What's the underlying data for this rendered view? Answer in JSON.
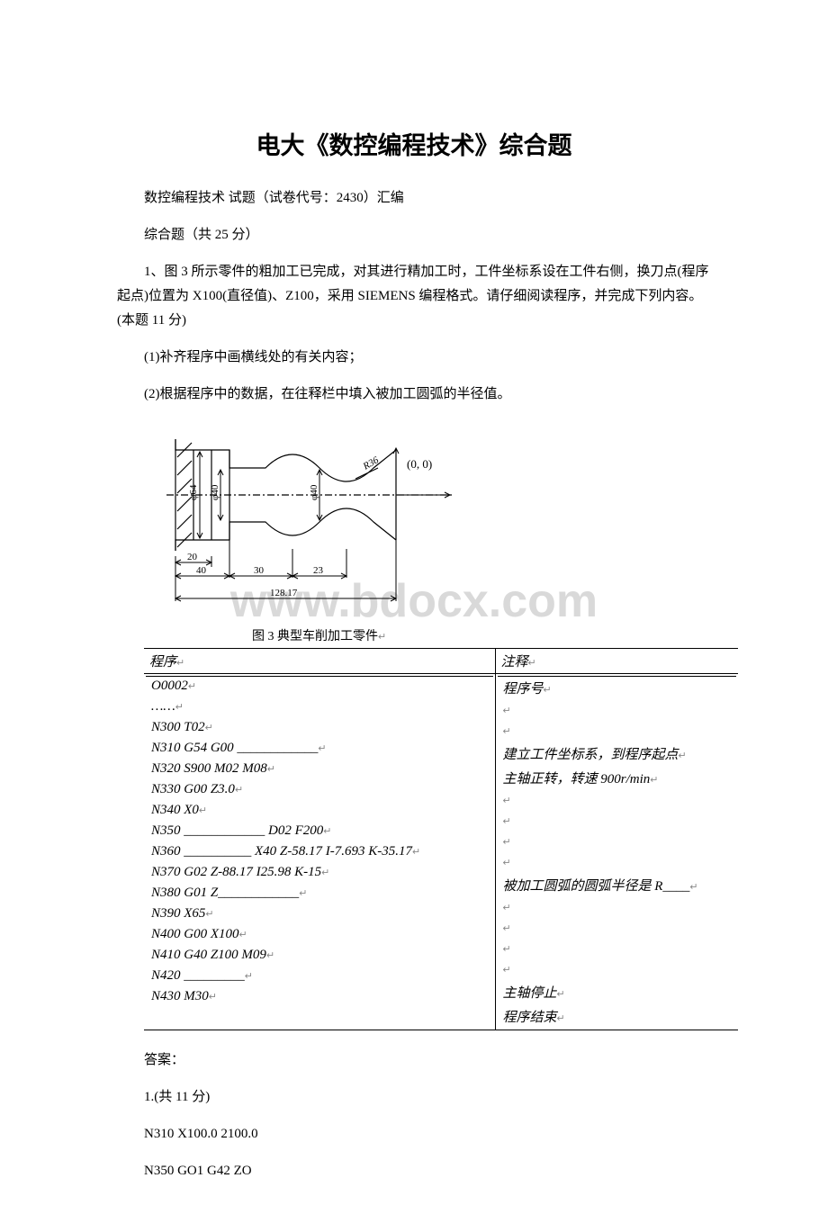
{
  "watermark": "www.bdocx.com",
  "title": "电大《数控编程技术》综合题",
  "intro_lines": [
    "数控编程技术 试题（试卷代号：2430）汇编",
    "综合题（共 25 分）"
  ],
  "question": {
    "stem": "1、图 3 所示零件的粗加工已完成，对其进行精加工时，工件坐标系设在工件右侧，换刀点(程序起点)位置为 X100(直径值)、Z100，采用 SIEMENS 编程格式。请仔细阅读程序，并完成下列内容。(本题 11 分)",
    "sub1": "(1)补齐程序中画横线处的有关内容；",
    "sub2": "(2)根据程序中的数据，在往释栏中填入被加工圆弧的半径值。"
  },
  "figure": {
    "caption": "图 3 典型车削加工零件",
    "origin_label": "(0, 0)",
    "dia_64": "φ64",
    "dia_40a": "φ40",
    "dia_40b": "φ40",
    "r36": "R36",
    "dim_20": "20",
    "dim_40": "40",
    "dim_30": "30",
    "dim_23": "23",
    "dim_total": "128.17",
    "colors": {
      "line": "#000000",
      "bg": "#ffffff"
    }
  },
  "table": {
    "header_prog": "程序",
    "header_note": "注释",
    "rows": [
      {
        "prog": "O0002",
        "note": "程序号"
      },
      {
        "prog": "……",
        "note": ""
      },
      {
        "prog": "N300 T02",
        "note": ""
      },
      {
        "prog": "N310 G54 G00 ____________",
        "note": "建立工件坐标系，到程序起点"
      },
      {
        "prog": "N320 S900 M02 M08",
        "note": "主轴正转，转速 900r/min"
      },
      {
        "prog": "N330 G00 Z3.0",
        "note": ""
      },
      {
        "prog": "N340 X0",
        "note": ""
      },
      {
        "prog": "N350 ____________ D02 F200",
        "note": ""
      },
      {
        "prog": "N360 __________ X40 Z-58.17 I-7.693 K-35.17",
        "note": ""
      },
      {
        "prog": "N370 G02 Z-88.17 I25.98 K-15",
        "note": "被加工圆弧的圆弧半径是 R____"
      },
      {
        "prog": "N380 G01 Z____________",
        "note": ""
      },
      {
        "prog": "N390    X65",
        "note": ""
      },
      {
        "prog": "N400 G00 X100",
        "note": ""
      },
      {
        "prog": "N410 G40 Z100 M09",
        "note": ""
      },
      {
        "prog": "N420 _________",
        "note": "主轴停止"
      },
      {
        "prog": "N430 M30",
        "note": "程序结束"
      }
    ]
  },
  "answers": {
    "label": "答案：",
    "line1": "1.(共 11 分)",
    "line2": "N310 X100.0 2100.0",
    "line3": "N350 GO1 G42 ZO"
  }
}
